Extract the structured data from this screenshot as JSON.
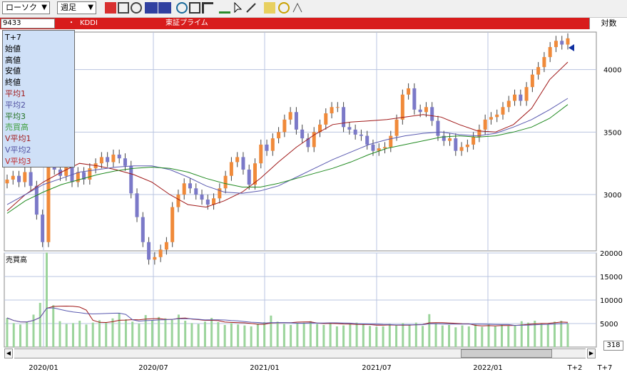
{
  "toolbar": {
    "period_select": "ローソク",
    "span_select": "週足",
    "icons": [
      "all-icon",
      "candle-icon",
      "move-icon",
      "ma-icon",
      "macd-icon",
      "zoom-icon",
      "layout-icon",
      "crosshair-icon",
      "pen-icon",
      "cursor-icon",
      "eraser-icon",
      "trend-icon",
      "settings-icon",
      "fib-icon"
    ]
  },
  "symbol": {
    "code": "9433",
    "dot": "・",
    "name": "KDDI",
    "market": "東証プライム"
  },
  "scale_button": "対数",
  "legend": {
    "title": "T+7",
    "items": [
      {
        "label": "始値",
        "color": "#000000"
      },
      {
        "label": "高値",
        "color": "#000000"
      },
      {
        "label": "安値",
        "color": "#000000"
      },
      {
        "label": "終値",
        "color": "#000000"
      },
      {
        "label": "平均1",
        "color": "#a01818"
      },
      {
        "label": "平均2",
        "color": "#5050a0"
      },
      {
        "label": "平均3",
        "color": "#207020"
      },
      {
        "label": "売買高",
        "color": "#40a040"
      },
      {
        "label": "V平均1",
        "color": "#a01818"
      },
      {
        "label": "V平均2",
        "color": "#5050a0"
      },
      {
        "label": "V平均3",
        "color": "#c02020"
      }
    ]
  },
  "volume_label": "売買高",
  "page_value": "318",
  "colors": {
    "up": "#f08a3a",
    "down": "#7b79c8",
    "ma1": "#a01818",
    "ma2": "#5a5ab0",
    "ma3": "#208a20",
    "vol": "#9bd49b",
    "grid": "#b9c4e0"
  },
  "chart_data": [
    {
      "type": "line",
      "subtype": "candlestick-weekly",
      "title": "KDDI",
      "x_ticks": [
        "2020/01",
        "2020/07",
        "2021/01",
        "2021/07",
        "2022/01",
        "T+2",
        "T+7"
      ],
      "y_ticks": [
        "4000",
        "3500",
        "3000"
      ],
      "ylim": [
        2550,
        4300
      ],
      "series": [
        {
          "name": "平均1",
          "values": [
            2870,
            3000,
            3100,
            3180,
            3250,
            3230,
            3200,
            3160,
            3100,
            3000,
            2920,
            2900,
            2950,
            3020,
            3130,
            3260,
            3380,
            3480,
            3560,
            3580,
            3590,
            3600,
            3620,
            3640,
            3620,
            3560,
            3510,
            3500,
            3560,
            3690,
            3920,
            4060
          ]
        },
        {
          "name": "平均2",
          "values": [
            2920,
            3000,
            3080,
            3130,
            3180,
            3200,
            3220,
            3230,
            3230,
            3200,
            3140,
            3070,
            3020,
            3010,
            3030,
            3070,
            3140,
            3210,
            3280,
            3340,
            3400,
            3440,
            3470,
            3490,
            3500,
            3480,
            3470,
            3490,
            3540,
            3600,
            3680,
            3770
          ]
        },
        {
          "name": "平均3",
          "values": [
            2850,
            2950,
            3020,
            3080,
            3120,
            3160,
            3190,
            3210,
            3220,
            3210,
            3180,
            3130,
            3090,
            3060,
            3060,
            3090,
            3130,
            3170,
            3210,
            3260,
            3320,
            3370,
            3400,
            3430,
            3460,
            3470,
            3460,
            3470,
            3500,
            3540,
            3610,
            3720
          ]
        }
      ],
      "candles_weekly_close": [
        3120,
        3150,
        3100,
        3180,
        3070,
        2840,
        2620,
        3280,
        3200,
        3150,
        3230,
        3100,
        3180,
        3120,
        3210,
        3250,
        3300,
        3260,
        3320,
        3290,
        3230,
        3010,
        2820,
        2620,
        2480,
        2500,
        2560,
        2620,
        2900,
        3000,
        3090,
        3050,
        3000,
        2960,
        2920,
        2970,
        3050,
        3150,
        3260,
        3300,
        3200,
        3080,
        3250,
        3400,
        3350,
        3450,
        3500,
        3600,
        3660,
        3520,
        3450,
        3380,
        3500,
        3560,
        3650,
        3700,
        3700,
        3540,
        3520,
        3480,
        3470,
        3400,
        3350,
        3370,
        3380,
        3470,
        3600,
        3800,
        3850,
        3680,
        3660,
        3700,
        3590,
        3470,
        3430,
        3450,
        3350,
        3380,
        3400,
        3460,
        3520,
        3600,
        3620,
        3640,
        3700,
        3750,
        3800,
        3750,
        3860,
        3960,
        4020,
        4100,
        4180,
        4230,
        4200,
        4250
      ]
    },
    {
      "type": "bar",
      "title": "売買高",
      "y_ticks": [
        "20000",
        "15000",
        "10000",
        "5000"
      ],
      "ylim": [
        0,
        20000
      ],
      "values": [
        6200,
        5100,
        4800,
        5300,
        6900,
        9400,
        20100,
        8900,
        5500,
        4900,
        5100,
        5600,
        4800,
        5200,
        5700,
        5300,
        6100,
        7200,
        5900,
        5400,
        5000,
        6800,
        5700,
        6400,
        6100,
        5800,
        6900,
        5600,
        5100,
        4900,
        5400,
        6200,
        5300,
        4700,
        5100,
        4800,
        4600,
        4400,
        5000,
        5300,
        6700,
        5400,
        4900,
        4700,
        5100,
        5200,
        5500,
        4900,
        4700,
        5100,
        4400,
        4600,
        4900,
        5200,
        4800,
        4500,
        4300,
        4400,
        4900,
        4600,
        5100,
        4800,
        5200,
        4500,
        7000,
        5100,
        4600,
        4700,
        4200,
        4600,
        4400,
        4800,
        4300,
        4900,
        4400,
        4700,
        4500,
        4600,
        5500,
        5200,
        5600,
        5000,
        4900,
        5400,
        5600,
        5100
      ]
    }
  ]
}
